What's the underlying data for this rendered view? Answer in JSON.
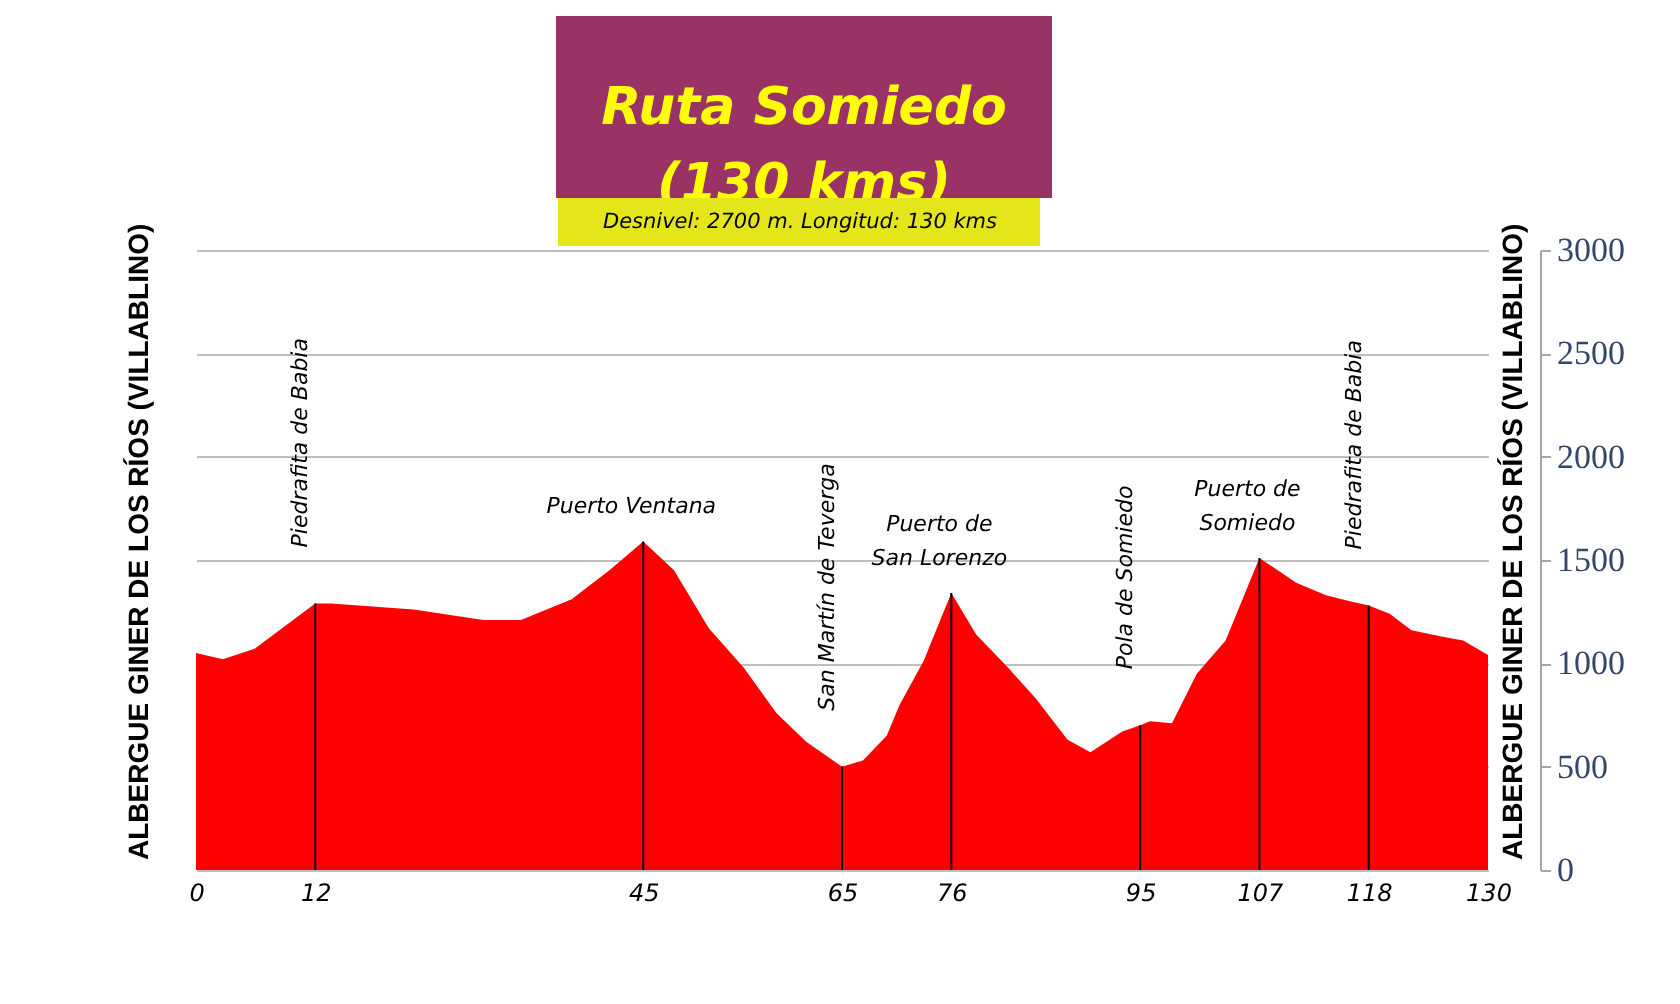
{
  "chart_data": {
    "type": "area",
    "title": "Ruta Somiedo\n(130 kms)",
    "subtitle": "Desnivel:  2700 m.    Longitud:  130 kms",
    "x": [
      0,
      2.7,
      5.9,
      9.5,
      12,
      13.6,
      21.9,
      28.9,
      32.7,
      37.8,
      41.6,
      45,
      48.1,
      51.6,
      55.1,
      58.4,
      61.4,
      65,
      67.1,
      69.5,
      70.8,
      73.2,
      76,
      78.5,
      81.7,
      84.5,
      87.7,
      90,
      93.2,
      95,
      96,
      98.2,
      100.7,
      103.6,
      107,
      110.7,
      113.7,
      116.1,
      118,
      120.1,
      122.3,
      125.3,
      127.5,
      130
    ],
    "series": [
      {
        "color": "#ff0000",
        "values": [
          1050,
          1020,
          1070,
          1200,
          1290,
          1290,
          1260,
          1210,
          1210,
          1310,
          1450,
          1590,
          1450,
          1170,
          980,
          760,
          620,
          500,
          530,
          650,
          800,
          1010,
          1340,
          1140,
          980,
          830,
          630,
          570,
          670,
          700,
          720,
          710,
          950,
          1110,
          1510,
          1390,
          1330,
          1300,
          1280,
          1240,
          1160,
          1130,
          1110,
          1040
        ]
      }
    ],
    "xlim": [
      0,
      130
    ],
    "xticks": [
      0,
      12,
      45,
      65,
      76,
      95,
      107,
      118,
      130
    ],
    "ylim": [
      0,
      3000
    ],
    "yticks": [
      0,
      500,
      1000,
      1500,
      2000,
      2500,
      3000
    ],
    "grid": "y",
    "ref_lines": [
      {
        "axis": "x",
        "value": 12,
        "label": "Piedrafita de Babia",
        "color": "#000000"
      },
      {
        "axis": "x",
        "value": 45,
        "label": "Puerto Ventana",
        "color": "#000000"
      },
      {
        "axis": "x",
        "value": 65,
        "label": "San Martín de Teverga",
        "color": "#000000"
      },
      {
        "axis": "x",
        "value": 76,
        "label": "Puerto de\nSan Lorenzo",
        "color": "#000000"
      },
      {
        "axis": "x",
        "value": 95,
        "label": "Pola de Somiedo",
        "color": "#000000"
      },
      {
        "axis": "x",
        "value": 107,
        "label": "Puerto de\nSomiedo",
        "color": "#000000"
      },
      {
        "axis": "x",
        "value": 118,
        "label": "Piedrafita de Babia",
        "color": "#000000"
      }
    ],
    "annotations": [
      "ALBERGUE GINER DE LOS RÍOS (VILLABLINO)",
      "ALBERGUE GINER DE LOS RÍOS (VILLABLINO)"
    ]
  }
}
